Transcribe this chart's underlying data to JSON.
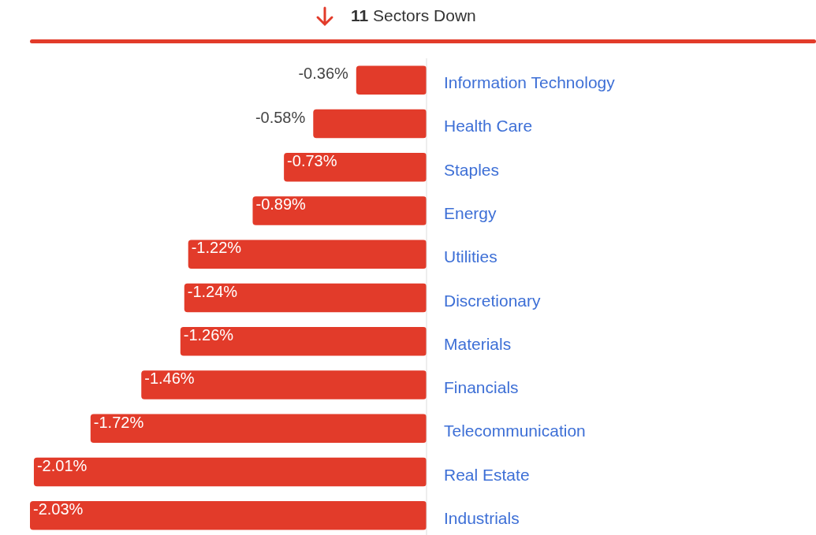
{
  "chart_data": {
    "type": "bar",
    "orientation": "horizontal",
    "title": "11 Sectors Down",
    "categories": [
      "Information Technology",
      "Health Care",
      "Staples",
      "Energy",
      "Utilities",
      "Discretionary",
      "Materials",
      "Financials",
      "Telecommunication",
      "Real Estate",
      "Industrials"
    ],
    "series": [
      {
        "color": "#e23b2a",
        "values": [
          -0.36,
          -0.58,
          -0.73,
          -0.89,
          -1.22,
          -1.24,
          -1.26,
          -1.46,
          -1.72,
          -2.01,
          -2.03
        ],
        "value_labels": [
          "-0.36%",
          "-0.58%",
          "-0.73%",
          "-0.89%",
          "-1.22%",
          "-1.24%",
          "-1.26%",
          "-1.46%",
          "-1.72%",
          "-2.01%",
          "-2.03%"
        ]
      }
    ],
    "tick_labels": "y"
  }
}
